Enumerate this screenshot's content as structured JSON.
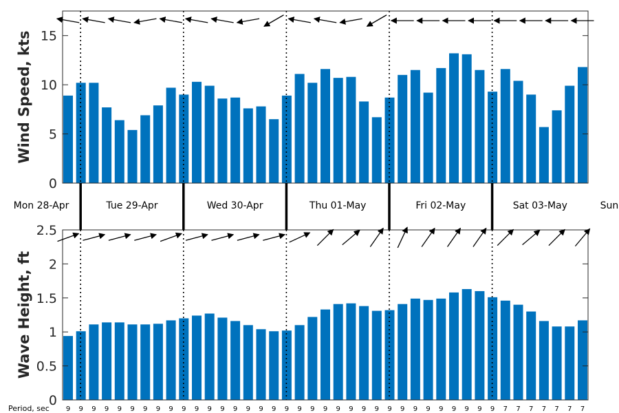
{
  "chart_data": [
    {
      "type": "bar",
      "ylabel": "Wind Speed, kts",
      "ylim": [
        0,
        17.5
      ],
      "yticks": [
        0,
        5,
        10,
        15
      ],
      "grid": false,
      "color": "#0072BD",
      "values": [
        8.9,
        10.2,
        10.2,
        7.7,
        6.4,
        5.4,
        6.9,
        7.9,
        9.7,
        9.0,
        10.3,
        9.9,
        8.6,
        8.7,
        7.6,
        7.8,
        6.5,
        8.9,
        11.1,
        10.2,
        11.6,
        10.7,
        10.8,
        8.3,
        6.7,
        8.7,
        11.0,
        11.5,
        9.2,
        11.7,
        13.2,
        13.1,
        11.5,
        9.3,
        11.6,
        10.4,
        9.0,
        5.7,
        7.4,
        9.9,
        11.8
      ],
      "direction_arrows": [
        {
          "stem_deg": 170,
          "head_deg": 170
        },
        {
          "stem_deg": 170,
          "head_deg": 170
        },
        {
          "stem_deg": 170,
          "head_deg": 170
        },
        {
          "stem_deg": 190,
          "head_deg": 190
        },
        {
          "stem_deg": 170,
          "head_deg": 170
        },
        {
          "stem_deg": 170,
          "head_deg": 170
        },
        {
          "stem_deg": 170,
          "head_deg": 170
        },
        {
          "stem_deg": 190,
          "head_deg": 190
        },
        {
          "stem_deg": 210,
          "head_deg": 210
        },
        {
          "stem_deg": 170,
          "head_deg": 170
        },
        {
          "stem_deg": 170,
          "head_deg": 170
        },
        {
          "stem_deg": 190,
          "head_deg": 190
        },
        {
          "stem_deg": 210,
          "head_deg": 210
        },
        {
          "stem_deg": 180,
          "head_deg": 180
        },
        {
          "stem_deg": 180,
          "head_deg": 180
        },
        {
          "stem_deg": 180,
          "head_deg": 180
        },
        {
          "stem_deg": 180,
          "head_deg": 180
        },
        {
          "stem_deg": 180,
          "head_deg": 180
        },
        {
          "stem_deg": 180,
          "head_deg": 180
        },
        {
          "stem_deg": 180,
          "head_deg": 180
        },
        {
          "stem_deg": 180,
          "head_deg": 180
        }
      ]
    },
    {
      "type": "bar",
      "ylabel": "Wave Height, ft",
      "ylim": [
        0,
        2.5
      ],
      "yticks": [
        0,
        0.5,
        1,
        1.5,
        2,
        2.5
      ],
      "grid": false,
      "color": "#0072BD",
      "values": [
        0.94,
        1.01,
        1.11,
        1.14,
        1.14,
        1.11,
        1.11,
        1.12,
        1.17,
        1.2,
        1.24,
        1.27,
        1.21,
        1.16,
        1.1,
        1.04,
        1.01,
        1.02,
        1.1,
        1.22,
        1.33,
        1.41,
        1.42,
        1.38,
        1.31,
        1.32,
        1.41,
        1.49,
        1.47,
        1.49,
        1.58,
        1.63,
        1.6,
        1.51,
        1.46,
        1.4,
        1.3,
        1.16,
        1.08,
        1.08,
        1.17
      ],
      "direction_arrows": [
        {
          "stem_deg": 20,
          "head_deg": 20
        },
        {
          "stem_deg": 15,
          "head_deg": 15
        },
        {
          "stem_deg": 15,
          "head_deg": 15
        },
        {
          "stem_deg": 15,
          "head_deg": 15
        },
        {
          "stem_deg": 20,
          "head_deg": 20
        },
        {
          "stem_deg": 15,
          "head_deg": 15
        },
        {
          "stem_deg": 15,
          "head_deg": 15
        },
        {
          "stem_deg": 15,
          "head_deg": 15
        },
        {
          "stem_deg": 15,
          "head_deg": 15
        },
        {
          "stem_deg": 25,
          "head_deg": 25
        },
        {
          "stem_deg": 45,
          "head_deg": 45
        },
        {
          "stem_deg": 40,
          "head_deg": 40
        },
        {
          "stem_deg": 55,
          "head_deg": 55
        },
        {
          "stem_deg": 65,
          "head_deg": 65
        },
        {
          "stem_deg": 55,
          "head_deg": 55
        },
        {
          "stem_deg": 55,
          "head_deg": 55
        },
        {
          "stem_deg": 55,
          "head_deg": 55
        },
        {
          "stem_deg": 45,
          "head_deg": 45
        },
        {
          "stem_deg": 40,
          "head_deg": 40
        },
        {
          "stem_deg": 45,
          "head_deg": 45
        },
        {
          "stem_deg": 50,
          "head_deg": 50
        }
      ]
    }
  ],
  "day_labels": [
    "Mon 28-Apr",
    "Tue 29-Apr",
    "Wed 30-Apr",
    "Thu 01-May",
    "Fri 02-May",
    "Sat 03-May",
    "Sun"
  ],
  "period_label": "Period, sec",
  "periods": [
    9,
    9,
    9,
    9,
    9,
    9,
    9,
    9,
    9,
    9,
    9,
    9,
    9,
    9,
    9,
    9,
    9,
    9,
    9,
    9,
    9,
    9,
    9,
    9,
    9,
    9,
    9,
    9,
    9,
    9,
    9,
    9,
    9,
    9,
    7,
    7,
    7,
    7,
    7,
    7,
    7
  ]
}
